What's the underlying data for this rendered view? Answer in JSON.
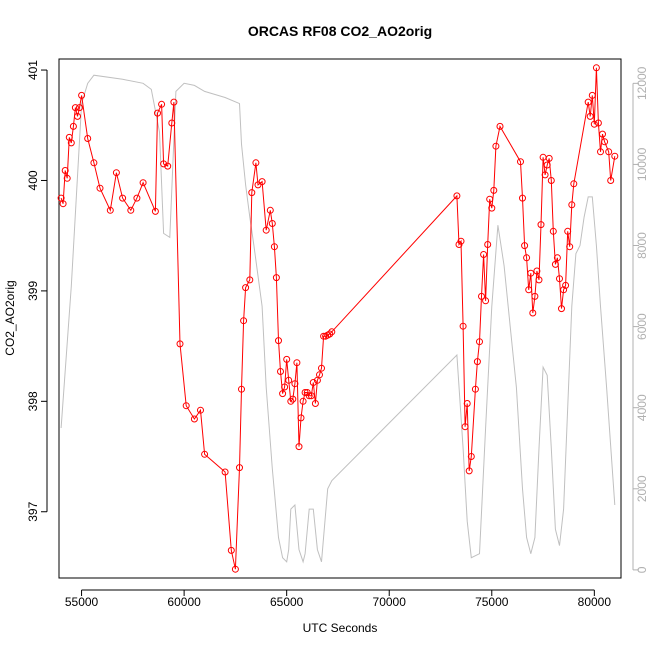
{
  "chart_data": {
    "type": "line",
    "title": "ORCAS RF08 CO2_AO2orig",
    "xlabel": "UTC Seconds",
    "ylabel": "CO2_AO2orig",
    "xlim": [
      53900,
      81300
    ],
    "ylim": [
      396.4,
      401.1
    ],
    "y2lim": [
      -200,
      12600
    ],
    "x_ticks": [
      55000,
      60000,
      65000,
      70000,
      75000,
      80000
    ],
    "x_tick_labels": [
      "55000",
      "60000",
      "65000",
      "70000",
      "75000",
      "80000"
    ],
    "y_ticks": [
      397,
      398,
      399,
      400,
      401
    ],
    "y_tick_labels": [
      "397",
      "398",
      "399",
      "400",
      "401"
    ],
    "y2_ticks": [
      0,
      2000,
      4000,
      6000,
      8000,
      10000,
      12000
    ],
    "y2_tick_labels": [
      "0",
      "2000",
      "4000",
      "6000",
      "8000",
      "10000",
      "12000"
    ],
    "grid": false,
    "series": [
      {
        "axis": "left",
        "color": "#ff0000",
        "marker": "open-circle",
        "x": [
          54000,
          54100,
          54200,
          54300,
          54400,
          54500,
          54600,
          54700,
          54800,
          54900,
          55000,
          55300,
          55600,
          55900,
          56400,
          56700,
          57000,
          57400,
          57700,
          58000,
          58600,
          58700,
          58900,
          59000,
          59200,
          59400,
          59500,
          59800,
          60100,
          60500,
          60800,
          61000,
          62000,
          62300,
          62500,
          62700,
          62800,
          62900,
          63000,
          63200,
          63300,
          63500,
          63600,
          63800,
          64000,
          64200,
          64300,
          64400,
          64500,
          64600,
          64700,
          64800,
          64900,
          65000,
          65100,
          65200,
          65300,
          65400,
          65500,
          65600,
          65700,
          65800,
          65900,
          66000,
          66100,
          66200,
          66300,
          66400,
          66500,
          66600,
          66700,
          66800,
          66900,
          67000,
          67100,
          67200,
          73300,
          73400,
          73500,
          73600,
          73700,
          73800,
          73900,
          74000,
          74200,
          74300,
          74400,
          74500,
          74600,
          74700,
          74800,
          74900,
          75000,
          75100,
          75200,
          75400,
          76400,
          76500,
          76600,
          76700,
          76800,
          76900,
          77000,
          77100,
          77200,
          77300,
          77400,
          77500,
          77600,
          77700,
          77800,
          77900,
          78000,
          78100,
          78200,
          78300,
          78400,
          78500,
          78600,
          78700,
          78800,
          78900,
          79000,
          79700,
          79800,
          79900,
          80000,
          80100,
          80200,
          80300,
          80400,
          80500,
          80700,
          80800,
          81000
        ],
        "y": [
          399.84,
          399.79,
          400.09,
          400.02,
          400.39,
          400.34,
          400.49,
          400.66,
          400.58,
          400.66,
          400.77,
          400.38,
          400.16,
          399.93,
          399.73,
          400.07,
          399.84,
          399.73,
          399.84,
          399.98,
          399.72,
          400.61,
          400.69,
          400.15,
          400.13,
          400.52,
          400.71,
          398.52,
          397.96,
          397.84,
          397.92,
          397.52,
          397.36,
          396.65,
          396.48,
          397.4,
          398.11,
          398.73,
          399.03,
          399.1,
          399.89,
          400.16,
          399.96,
          399.99,
          399.55,
          399.73,
          399.61,
          399.4,
          399.12,
          398.55,
          398.27,
          398.07,
          398.13,
          398.38,
          398.19,
          398.0,
          398.02,
          398.16,
          398.35,
          397.59,
          397.85,
          398.0,
          398.08,
          398.08,
          398.05,
          398.05,
          398.17,
          397.98,
          398.19,
          398.24,
          398.3,
          398.59,
          398.59,
          398.6,
          398.61,
          398.63,
          399.86,
          399.42,
          399.45,
          398.68,
          397.77,
          397.98,
          397.37,
          397.5,
          398.11,
          398.36,
          398.54,
          398.95,
          399.33,
          398.91,
          399.42,
          399.83,
          399.75,
          399.91,
          400.31,
          400.49,
          400.17,
          399.84,
          399.41,
          399.3,
          399.01,
          399.16,
          398.8,
          398.95,
          399.18,
          399.1,
          399.6,
          400.21,
          400.05,
          400.14,
          400.2,
          400.0,
          399.54,
          399.24,
          399.3,
          399.11,
          398.84,
          399.01,
          399.05,
          399.54,
          399.4,
          399.78,
          399.97,
          400.71,
          400.58,
          400.77,
          400.51,
          401.02,
          400.52,
          400.26,
          400.42,
          400.35,
          400.26,
          400.0,
          400.22
        ]
      },
      {
        "axis": "right",
        "color": "#c0c0c0",
        "marker": "none",
        "x": [
          54000,
          54500,
          55000,
          55300,
          55600,
          57000,
          58000,
          58400,
          58800,
          59000,
          59300,
          59600,
          60000,
          60500,
          61000,
          62000,
          62700,
          62800,
          63000,
          63200,
          63400,
          63800,
          64000,
          64300,
          64600,
          64800,
          65000,
          65100,
          65200,
          65400,
          65600,
          65800,
          65900,
          66100,
          66300,
          66500,
          66700,
          67000,
          67200,
          73300,
          73600,
          73800,
          74000,
          74400,
          74700,
          75000,
          75300,
          75600,
          75900,
          76200,
          76500,
          76700,
          76900,
          77100,
          77300,
          77500,
          77700,
          77900,
          78100,
          78300,
          78500,
          78700,
          78900,
          79100,
          79300,
          79500,
          79700,
          79900,
          80100,
          80300,
          80600,
          81000
        ],
        "y": [
          3500,
          7000,
          11500,
          12000,
          12200,
          12100,
          12000,
          11850,
          10800,
          8300,
          8200,
          11800,
          12000,
          11950,
          11800,
          11650,
          11500,
          10500,
          9500,
          8700,
          8000,
          6500,
          4500,
          2500,
          800,
          300,
          200,
          500,
          1500,
          1600,
          500,
          200,
          400,
          1500,
          1500,
          500,
          200,
          2000,
          2200,
          5300,
          3000,
          1200,
          300,
          400,
          3500,
          6500,
          8500,
          7500,
          6000,
          4500,
          2000,
          800,
          400,
          800,
          3000,
          5000,
          4800,
          3000,
          1000,
          600,
          1500,
          4000,
          6500,
          7800,
          8000,
          8700,
          9200,
          9200,
          8000,
          6500,
          4500,
          1600
        ]
      }
    ]
  }
}
